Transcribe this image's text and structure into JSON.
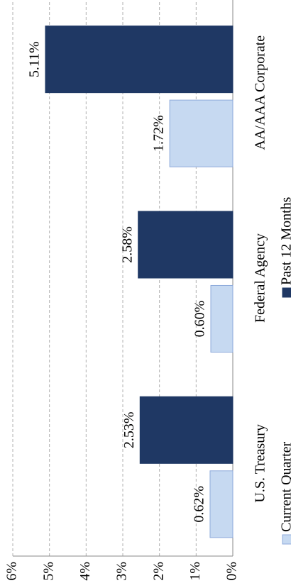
{
  "chart_data": {
    "type": "bar",
    "categories": [
      "U.S. Treasury",
      "Federal Agency",
      "AA/AAA Corporate"
    ],
    "series": [
      {
        "name": "Current Quarter",
        "color": "#c6d9f1",
        "values": [
          0.62,
          0.6,
          1.72
        ],
        "value_labels": [
          "0.62%",
          "0.60%",
          "1.72%"
        ]
      },
      {
        "name": "Past 12 Months",
        "color": "#1f3864",
        "values": [
          2.53,
          2.58,
          5.11
        ],
        "value_labels": [
          "2.53%",
          "2.58%",
          "5.11%"
        ]
      }
    ],
    "ylim": [
      0,
      6
    ],
    "yticks": [
      {
        "value": 0,
        "label": "0%"
      },
      {
        "value": 1,
        "label": "1%"
      },
      {
        "value": 2,
        "label": "2%"
      },
      {
        "value": 3,
        "label": "3%"
      },
      {
        "value": 4,
        "label": "4%"
      },
      {
        "value": 5,
        "label": "5%"
      },
      {
        "value": 6,
        "label": "6%"
      }
    ],
    "grid": true
  }
}
